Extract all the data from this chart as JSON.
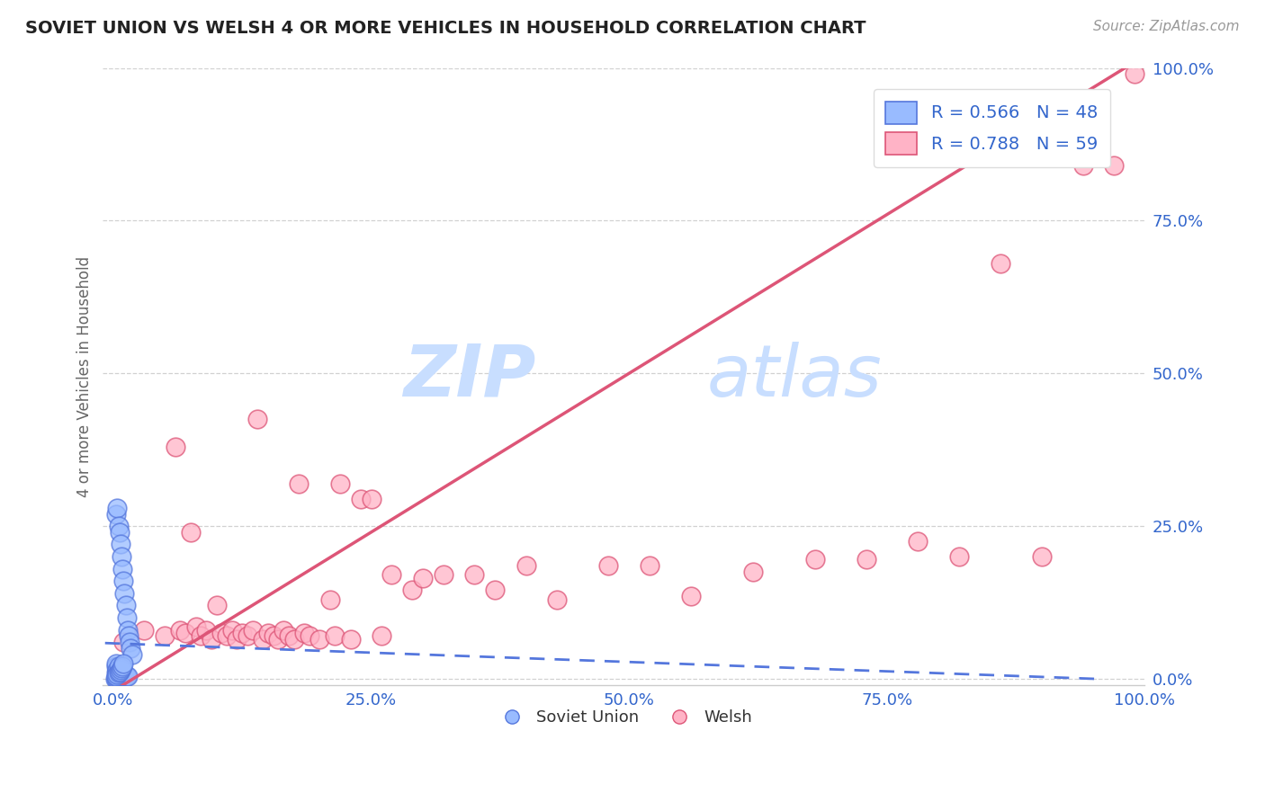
{
  "title": "SOVIET UNION VS WELSH 4 OR MORE VEHICLES IN HOUSEHOLD CORRELATION CHART",
  "source": "Source: ZipAtlas.com",
  "ylabel_label": "4 or more Vehicles in Household",
  "x_tick_labels": [
    "0.0%",
    "25.0%",
    "50.0%",
    "75.0%",
    "100.0%"
  ],
  "y_tick_labels": [
    "0.0%",
    "25.0%",
    "50.0%",
    "75.0%",
    "100.0%"
  ],
  "x_ticks": [
    0,
    0.25,
    0.5,
    0.75,
    1.0
  ],
  "y_ticks": [
    0,
    0.25,
    0.5,
    0.75,
    1.0
  ],
  "soviet_R": 0.566,
  "soviet_N": 48,
  "welsh_R": 0.788,
  "welsh_N": 59,
  "soviet_color": "#99BBFF",
  "welsh_color": "#FFB3C6",
  "soviet_edge_color": "#5577DD",
  "welsh_edge_color": "#DD5577",
  "soviet_line_color": "#5577DD",
  "welsh_line_color": "#DD5577",
  "legend_label_soviet": "Soviet Union",
  "legend_label_welsh": "Welsh",
  "watermark_zip": "ZIP",
  "watermark_atlas": "atlas",
  "watermark_color": "#C8DEFF",
  "soviet_x": [
    0.002,
    0.003,
    0.003,
    0.003,
    0.003,
    0.003,
    0.004,
    0.004,
    0.004,
    0.004,
    0.005,
    0.005,
    0.005,
    0.005,
    0.006,
    0.006,
    0.006,
    0.007,
    0.007,
    0.007,
    0.008,
    0.008,
    0.008,
    0.009,
    0.009,
    0.01,
    0.01,
    0.01,
    0.011,
    0.011,
    0.012,
    0.012,
    0.013,
    0.013,
    0.014,
    0.014,
    0.015,
    0.016,
    0.017,
    0.018,
    0.003,
    0.004,
    0.005,
    0.006,
    0.007,
    0.008,
    0.009,
    0.01
  ],
  "soviet_y": [
    0.0,
    0.0,
    0.01,
    0.02,
    0.025,
    0.27,
    0.0,
    0.01,
    0.015,
    0.28,
    0.0,
    0.01,
    0.02,
    0.25,
    0.005,
    0.01,
    0.24,
    0.005,
    0.01,
    0.22,
    0.005,
    0.008,
    0.2,
    0.005,
    0.18,
    0.005,
    0.008,
    0.16,
    0.005,
    0.14,
    0.005,
    0.12,
    0.005,
    0.1,
    0.005,
    0.08,
    0.07,
    0.06,
    0.05,
    0.04,
    0.005,
    0.008,
    0.01,
    0.012,
    0.015,
    0.018,
    0.02,
    0.025
  ],
  "welsh_x": [
    0.01,
    0.03,
    0.05,
    0.06,
    0.065,
    0.07,
    0.075,
    0.08,
    0.085,
    0.09,
    0.095,
    0.1,
    0.105,
    0.11,
    0.115,
    0.12,
    0.125,
    0.13,
    0.135,
    0.14,
    0.145,
    0.15,
    0.155,
    0.16,
    0.165,
    0.17,
    0.175,
    0.18,
    0.185,
    0.19,
    0.2,
    0.21,
    0.215,
    0.22,
    0.23,
    0.24,
    0.25,
    0.26,
    0.27,
    0.29,
    0.3,
    0.32,
    0.35,
    0.37,
    0.4,
    0.43,
    0.48,
    0.52,
    0.56,
    0.62,
    0.68,
    0.73,
    0.78,
    0.82,
    0.86,
    0.9,
    0.94,
    0.97,
    0.99
  ],
  "welsh_y": [
    0.06,
    0.08,
    0.07,
    0.38,
    0.08,
    0.075,
    0.24,
    0.085,
    0.07,
    0.08,
    0.065,
    0.12,
    0.075,
    0.07,
    0.08,
    0.065,
    0.075,
    0.07,
    0.08,
    0.425,
    0.065,
    0.075,
    0.07,
    0.065,
    0.08,
    0.07,
    0.065,
    0.32,
    0.075,
    0.07,
    0.065,
    0.13,
    0.07,
    0.32,
    0.065,
    0.295,
    0.295,
    0.07,
    0.17,
    0.145,
    0.165,
    0.17,
    0.17,
    0.145,
    0.185,
    0.13,
    0.185,
    0.185,
    0.135,
    0.175,
    0.195,
    0.195,
    0.225,
    0.2,
    0.68,
    0.2,
    0.84,
    0.84,
    0.99
  ],
  "welsh_line_x0": 0.0,
  "welsh_line_y0": -0.02,
  "welsh_line_x1": 1.0,
  "welsh_line_y1": 1.02
}
